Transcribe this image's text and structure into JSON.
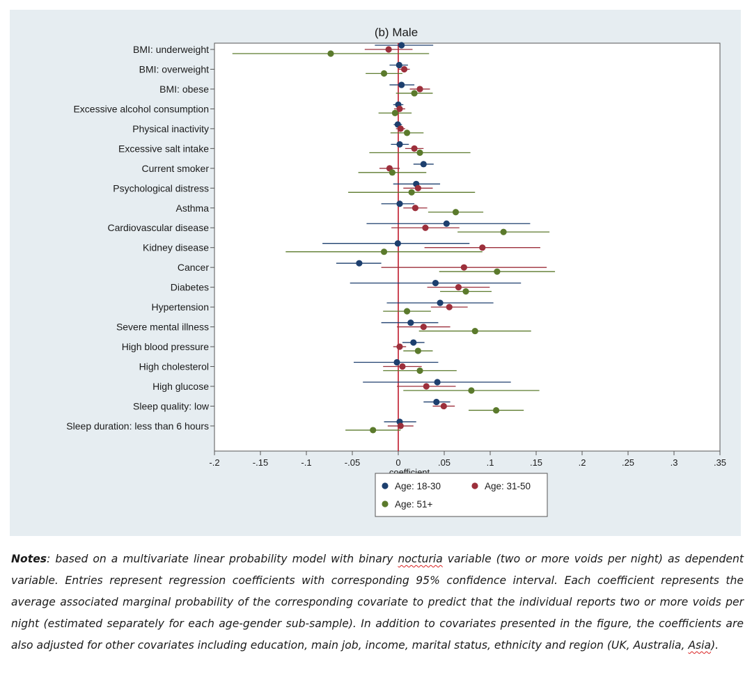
{
  "chart_data": {
    "type": "scatter",
    "subtype": "coefficient plot with 95% confidence intervals (horizontal whiskers)",
    "title": "(b) Male",
    "xlabel": "coefficient",
    "ylabel": "",
    "xlim": [
      -0.2,
      0.35
    ],
    "x_ticks": [
      -0.2,
      -0.15,
      -0.1,
      -0.05,
      0,
      0.05,
      0.1,
      0.15,
      0.2,
      0.25,
      0.3,
      0.35
    ],
    "x_tick_labels": [
      "-.2",
      "-.15",
      "-.1",
      "-.05",
      "0",
      ".05",
      ".1",
      ".15",
      ".2",
      ".25",
      ".3",
      ".35"
    ],
    "reference_line": {
      "x": 0,
      "color": "#c0182a"
    },
    "grid": false,
    "legend_position": "bottom",
    "categories": [
      "BMI: underweight",
      "BMI: overweight",
      "BMI: obese",
      "Excessive alcohol consumption",
      "Physical inactivity",
      "Excessive salt intake",
      "Current smoker",
      "Psychological distress",
      "Asthma",
      "Cardiovascular disease",
      "Kidney disease",
      "Cancer",
      "Diabetes",
      "Hypertension",
      "Severe mental illness",
      "High blood pressure",
      "High cholesterol",
      "High glucose",
      "Sleep quality: low",
      "Sleep duration: less than 6 hours"
    ],
    "series": [
      {
        "name": "Age: 18-30",
        "color": "#1d3f6e",
        "points": [
          {
            "est": 0.0035,
            "lo": -0.0255,
            "hi": 0.038
          },
          {
            "est": 0.001,
            "lo": -0.0095,
            "hi": 0.0105
          },
          {
            "est": 0.0035,
            "lo": -0.0095,
            "hi": 0.0175
          },
          {
            "est": 0.0,
            "lo": -0.0055,
            "hi": 0.0055
          },
          {
            "est": -0.0005,
            "lo": -0.005,
            "hi": 0.004
          },
          {
            "est": 0.0015,
            "lo": -0.008,
            "hi": 0.0115
          },
          {
            "est": 0.0275,
            "lo": 0.0165,
            "hi": 0.0385
          },
          {
            "est": 0.0195,
            "lo": -0.0055,
            "hi": 0.0455
          },
          {
            "est": 0.0015,
            "lo": -0.0185,
            "hi": 0.0175
          },
          {
            "est": 0.0525,
            "lo": -0.0345,
            "hi": 0.1435
          },
          {
            "est": -0.0005,
            "lo": -0.0825,
            "hi": 0.0775
          },
          {
            "est": -0.0425,
            "lo": -0.0675,
            "hi": -0.0185
          },
          {
            "est": 0.0405,
            "lo": -0.0525,
            "hi": 0.1335
          },
          {
            "est": 0.0455,
            "lo": -0.0125,
            "hi": 0.1035
          },
          {
            "est": 0.0135,
            "lo": -0.0185,
            "hi": 0.0435
          },
          {
            "est": 0.0165,
            "lo": 0.0045,
            "hi": 0.0285
          },
          {
            "est": -0.0015,
            "lo": -0.0485,
            "hi": 0.0435
          },
          {
            "est": 0.0425,
            "lo": -0.0385,
            "hi": 0.1225
          },
          {
            "est": 0.0415,
            "lo": 0.0275,
            "hi": 0.0565
          },
          {
            "est": 0.0015,
            "lo": -0.0155,
            "hi": 0.0195
          }
        ]
      },
      {
        "name": "Age: 31-50",
        "color": "#9c2f3b",
        "points": [
          {
            "est": -0.0105,
            "lo": -0.0365,
            "hi": 0.0155
          },
          {
            "est": 0.0065,
            "lo": 0.0005,
            "hi": 0.0125
          },
          {
            "est": 0.0235,
            "lo": 0.0125,
            "hi": 0.0345
          },
          {
            "est": 0.0015,
            "lo": -0.0045,
            "hi": 0.0075
          },
          {
            "est": 0.0025,
            "lo": -0.0025,
            "hi": 0.0075
          },
          {
            "est": 0.0175,
            "lo": 0.0075,
            "hi": 0.0275
          },
          {
            "est": -0.0095,
            "lo": -0.0205,
            "hi": 0.0015
          },
          {
            "est": 0.0215,
            "lo": 0.0055,
            "hi": 0.0375
          },
          {
            "est": 0.0185,
            "lo": 0.0055,
            "hi": 0.0315
          },
          {
            "est": 0.0295,
            "lo": -0.0075,
            "hi": 0.0665
          },
          {
            "est": 0.0915,
            "lo": 0.0285,
            "hi": 0.1545
          },
          {
            "est": 0.0715,
            "lo": -0.0185,
            "hi": 0.1615
          },
          {
            "est": 0.0655,
            "lo": 0.0315,
            "hi": 0.0995
          },
          {
            "est": 0.0555,
            "lo": 0.0355,
            "hi": 0.0755
          },
          {
            "est": 0.0275,
            "lo": -0.0015,
            "hi": 0.0565
          },
          {
            "est": 0.0015,
            "lo": -0.0055,
            "hi": 0.0085
          },
          {
            "est": 0.0045,
            "lo": -0.0165,
            "hi": 0.0255
          },
          {
            "est": 0.0305,
            "lo": -0.0015,
            "hi": 0.0625
          },
          {
            "est": 0.0495,
            "lo": 0.0375,
            "hi": 0.0615
          },
          {
            "est": 0.0025,
            "lo": -0.0115,
            "hi": 0.0165
          }
        ]
      },
      {
        "name": "Age: 51+",
        "color": "#5b7a2c",
        "points": [
          {
            "est": -0.0735,
            "lo": -0.1805,
            "hi": 0.0335
          },
          {
            "est": -0.0155,
            "lo": -0.0355,
            "hi": 0.0045
          },
          {
            "est": 0.0175,
            "lo": -0.0025,
            "hi": 0.0375
          },
          {
            "est": -0.0035,
            "lo": -0.0215,
            "hi": 0.0145
          },
          {
            "est": 0.0095,
            "lo": -0.0085,
            "hi": 0.0275
          },
          {
            "est": 0.0235,
            "lo": -0.0315,
            "hi": 0.0785
          },
          {
            "est": -0.0065,
            "lo": -0.0435,
            "hi": 0.0305
          },
          {
            "est": 0.0145,
            "lo": -0.0545,
            "hi": 0.0835
          },
          {
            "est": 0.0625,
            "lo": 0.0325,
            "hi": 0.0925
          },
          {
            "est": 0.1145,
            "lo": 0.0645,
            "hi": 0.1645
          },
          {
            "est": -0.0155,
            "lo": -0.1225,
            "hi": 0.0915
          },
          {
            "est": 0.1075,
            "lo": 0.0445,
            "hi": 0.1705
          },
          {
            "est": 0.0735,
            "lo": 0.0455,
            "hi": 0.1015
          },
          {
            "est": 0.0095,
            "lo": -0.0165,
            "hi": 0.0355
          },
          {
            "est": 0.0835,
            "lo": 0.0225,
            "hi": 0.1445
          },
          {
            "est": 0.0215,
            "lo": 0.0055,
            "hi": 0.0375
          },
          {
            "est": 0.0235,
            "lo": -0.0165,
            "hi": 0.0635
          },
          {
            "est": 0.0795,
            "lo": 0.0055,
            "hi": 0.1535
          },
          {
            "est": 0.1065,
            "lo": 0.0765,
            "hi": 0.1365
          },
          {
            "est": -0.0275,
            "lo": -0.0575,
            "hi": 0.0025
          }
        ]
      }
    ]
  },
  "notes": {
    "lead": "Notes",
    "part1": ": based on a multivariate linear probability model with binary ",
    "term1": "nocturia",
    "part2": " variable (two or more voids per night) as dependent variable. Entries represent regression coefficients with corresponding 95% confidence interval. Each coefficient represents the average associated marginal probability of the corresponding covariate to predict that the individual reports two or more voids per night (estimated separately for each age-gender sub-sample). In addition to covariates presented in the figure, the coefficients are also adjusted for other covariates including education, main job, income, marital status, ethnicity and region (UK, Australia, ",
    "term2": "Asia",
    "part3": ")."
  }
}
